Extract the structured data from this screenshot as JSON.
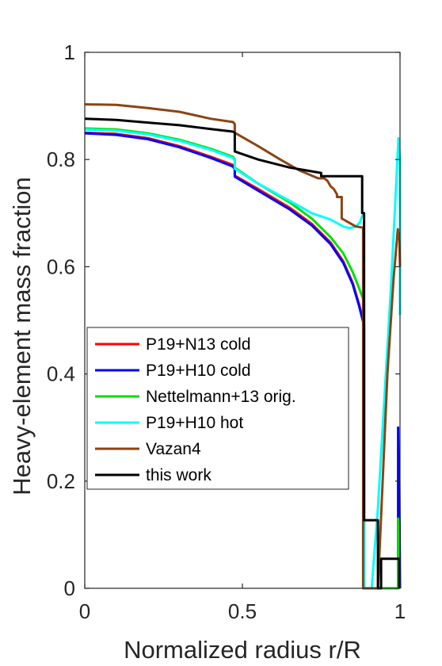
{
  "chart_data": {
    "type": "line",
    "title": "",
    "xlabel": "Normalized radius r/R",
    "ylabel": "Heavy-element mass fraction",
    "xlim": [
      0,
      1
    ],
    "ylim": [
      0,
      1
    ],
    "xticks": [
      0,
      0.5,
      1
    ],
    "xtick_labels": [
      "0",
      "0.5",
      "1"
    ],
    "yticks": [
      0,
      0.2,
      0.4,
      0.6,
      0.8,
      1
    ],
    "ytick_labels": [
      "0",
      "0.2",
      "0.4",
      "0.6",
      "0.8",
      "1"
    ],
    "grid": false,
    "legend_position": "center-left",
    "series": [
      {
        "name": "P19+N13 cold",
        "color": "#ff0000",
        "x": [
          0,
          0.1,
          0.2,
          0.3,
          0.4,
          0.47,
          0.476,
          0.476,
          0.55,
          0.65,
          0.72,
          0.78,
          0.82,
          0.85,
          0.87,
          0.883,
          0.886,
          0.886,
          0.92,
          0.97,
          0.985,
          0.99,
          0.994,
          0.994,
          0.997,
          1.0
        ],
        "y": [
          0.85,
          0.848,
          0.84,
          0.825,
          0.805,
          0.79,
          0.785,
          0.77,
          0.745,
          0.71,
          0.68,
          0.645,
          0.61,
          0.57,
          0.53,
          0.5,
          0.49,
          0.0,
          0.0,
          0.0,
          0.0,
          0.0,
          0.0,
          0.03,
          0.02,
          0.02
        ]
      },
      {
        "name": "P19+H10 cold",
        "color": "#0000ff",
        "x": [
          0,
          0.1,
          0.2,
          0.3,
          0.4,
          0.47,
          0.476,
          0.476,
          0.55,
          0.65,
          0.72,
          0.78,
          0.82,
          0.85,
          0.87,
          0.883,
          0.886,
          0.886,
          0.92,
          0.97,
          0.985,
          0.99,
          0.994,
          0.994,
          0.997,
          0.997,
          1.0
        ],
        "y": [
          0.849,
          0.846,
          0.838,
          0.823,
          0.803,
          0.787,
          0.782,
          0.768,
          0.742,
          0.707,
          0.677,
          0.642,
          0.607,
          0.567,
          0.527,
          0.497,
          0.487,
          0.0,
          0.0,
          0.0,
          0.0,
          0.0,
          0.0,
          0.3,
          0.15,
          0.25,
          0.0
        ]
      },
      {
        "name": "Nettelmann+13 orig.",
        "color": "#00e000",
        "x": [
          0,
          0.1,
          0.2,
          0.3,
          0.4,
          0.47,
          0.476,
          0.476,
          0.55,
          0.65,
          0.72,
          0.78,
          0.82,
          0.85,
          0.87,
          0.883,
          0.886,
          0.886,
          0.92,
          0.97,
          0.985,
          0.99,
          0.994,
          0.994,
          0.997,
          1.0
        ],
        "y": [
          0.858,
          0.856,
          0.849,
          0.837,
          0.82,
          0.805,
          0.8,
          0.785,
          0.755,
          0.72,
          0.69,
          0.655,
          0.625,
          0.59,
          0.56,
          0.54,
          0.535,
          0.0,
          0.0,
          0.0,
          0.0,
          0.0,
          0.0,
          0.13,
          0.05,
          0.05
        ]
      },
      {
        "name": "P19+H10 hot",
        "color": "#00ffff",
        "x": [
          0,
          0.1,
          0.2,
          0.3,
          0.4,
          0.47,
          0.476,
          0.476,
          0.55,
          0.65,
          0.72,
          0.78,
          0.82,
          0.84,
          0.86,
          0.873,
          0.878,
          0.886,
          0.886,
          0.91,
          0.93,
          0.95,
          0.97,
          0.985,
          0.995,
          1.0,
          1.0
        ],
        "y": [
          0.856,
          0.854,
          0.847,
          0.835,
          0.818,
          0.803,
          0.798,
          0.783,
          0.755,
          0.723,
          0.7,
          0.688,
          0.675,
          0.672,
          0.675,
          0.683,
          0.692,
          0.7,
          0.0,
          0.0,
          0.15,
          0.35,
          0.55,
          0.72,
          0.84,
          0.8,
          0.51
        ]
      },
      {
        "name": "Vazan4",
        "color": "#8b4513",
        "x": [
          0,
          0.1,
          0.2,
          0.3,
          0.4,
          0.47,
          0.476,
          0.476,
          0.55,
          0.62,
          0.68,
          0.74,
          0.76,
          0.77,
          0.78,
          0.79,
          0.8,
          0.8,
          0.815,
          0.815,
          0.83,
          0.86,
          0.883,
          0.883,
          0.93,
          0.945,
          0.96,
          0.98,
          0.993,
          0.998,
          1.0
        ],
        "y": [
          0.903,
          0.902,
          0.896,
          0.889,
          0.876,
          0.87,
          0.866,
          0.85,
          0.825,
          0.8,
          0.78,
          0.765,
          0.765,
          0.76,
          0.75,
          0.745,
          0.735,
          0.73,
          0.73,
          0.69,
          0.685,
          0.675,
          0.673,
          0.0,
          0.0,
          0.2,
          0.4,
          0.58,
          0.67,
          0.65,
          0.6
        ]
      },
      {
        "name": "this work",
        "color": "#000000",
        "x": [
          0,
          0.1,
          0.2,
          0.3,
          0.4,
          0.47,
          0.476,
          0.476,
          0.55,
          0.65,
          0.72,
          0.75,
          0.75,
          0.88,
          0.88,
          0.886,
          0.886,
          0.93,
          0.93,
          0.94,
          0.94,
          0.998,
          0.998
        ],
        "y": [
          0.876,
          0.874,
          0.869,
          0.864,
          0.857,
          0.852,
          0.85,
          0.815,
          0.8,
          0.785,
          0.778,
          0.775,
          0.769,
          0.769,
          0.7,
          0.7,
          0.127,
          0.127,
          0.0,
          0.0,
          0.055,
          0.055,
          0.0
        ]
      }
    ]
  }
}
